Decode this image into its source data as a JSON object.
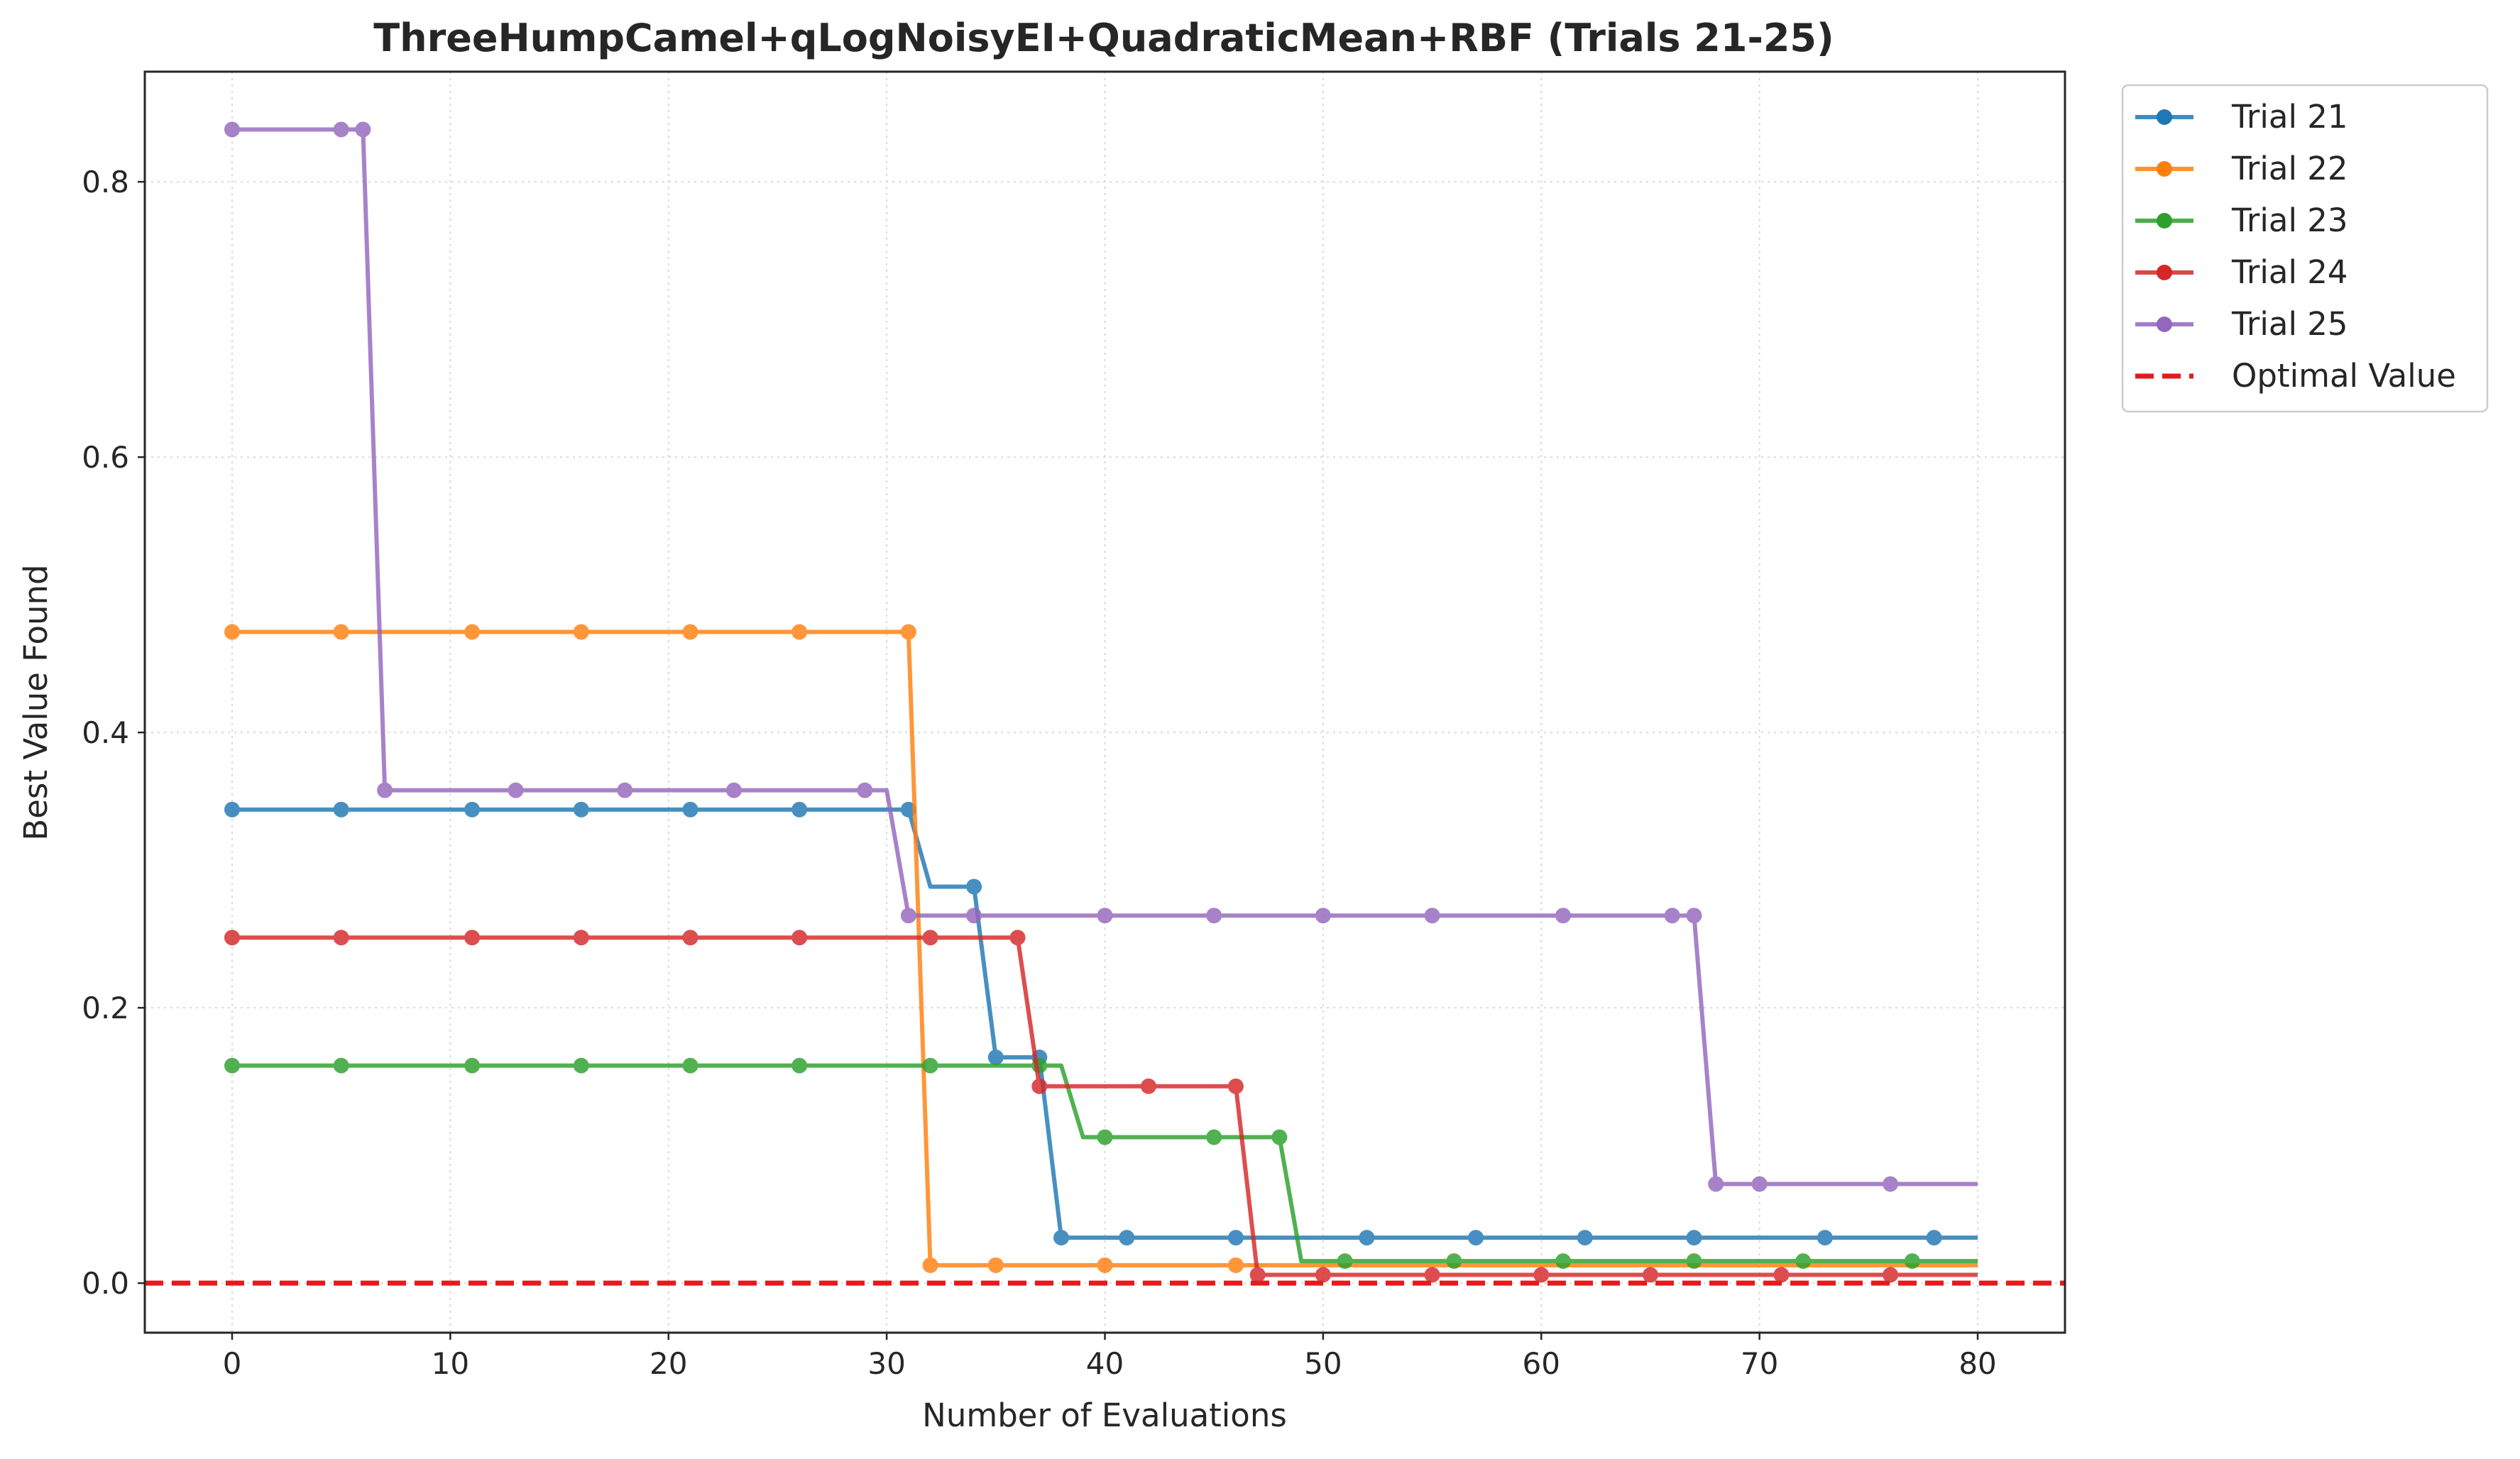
{
  "chart_data": {
    "type": "line",
    "title": "ThreeHumpCamel+qLogNoisyEI+QuadraticMean+RBF (Trials 21-25)",
    "xlabel": "Number of Evaluations",
    "ylabel": "Best Value Found",
    "xlim": [
      -4,
      84
    ],
    "ylim": [
      -0.036,
      0.88
    ],
    "xticks": [
      0,
      10,
      20,
      30,
      40,
      50,
      60,
      70,
      80
    ],
    "yticks": [
      0.0,
      0.2,
      0.4,
      0.6,
      0.8
    ],
    "xtick_labels": [
      "0",
      "10",
      "20",
      "30",
      "40",
      "50",
      "60",
      "70",
      "80"
    ],
    "ytick_labels": [
      "0.0",
      "0.2",
      "0.4",
      "0.6",
      "0.8"
    ],
    "grid": true,
    "legend_position": "outside top-right",
    "optimal_value": 0.0,
    "optimal_label": "Optimal Value",
    "optimal_color": "#e41a1c",
    "series": [
      {
        "name": "Trial 21",
        "color": "#1f77b4",
        "steps": [
          [
            0,
            0.344
          ],
          [
            32,
            0.288
          ],
          [
            35,
            0.164
          ],
          [
            38,
            0.033
          ],
          [
            80,
            0.033
          ]
        ],
        "markers": [
          [
            0,
            0.344
          ],
          [
            5,
            0.344
          ],
          [
            11,
            0.344
          ],
          [
            16,
            0.344
          ],
          [
            21,
            0.344
          ],
          [
            26,
            0.344
          ],
          [
            31,
            0.344
          ],
          [
            34,
            0.288
          ],
          [
            35,
            0.164
          ],
          [
            37,
            0.164
          ],
          [
            38,
            0.033
          ],
          [
            41,
            0.033
          ],
          [
            46,
            0.033
          ],
          [
            52,
            0.033
          ],
          [
            57,
            0.033
          ],
          [
            62,
            0.033
          ],
          [
            67,
            0.033
          ],
          [
            73,
            0.033
          ],
          [
            78,
            0.033
          ]
        ]
      },
      {
        "name": "Trial 22",
        "color": "#ff7f0e",
        "steps": [
          [
            0,
            0.473
          ],
          [
            32,
            0.013
          ],
          [
            80,
            0.013
          ]
        ],
        "markers": [
          [
            0,
            0.473
          ],
          [
            5,
            0.473
          ],
          [
            11,
            0.473
          ],
          [
            16,
            0.473
          ],
          [
            21,
            0.473
          ],
          [
            26,
            0.473
          ],
          [
            31,
            0.473
          ],
          [
            32,
            0.013
          ],
          [
            35,
            0.013
          ],
          [
            40,
            0.013
          ],
          [
            46,
            0.013
          ]
        ]
      },
      {
        "name": "Trial 23",
        "color": "#2ca02c",
        "steps": [
          [
            0,
            0.158
          ],
          [
            39,
            0.106
          ],
          [
            49,
            0.016
          ],
          [
            80,
            0.016
          ]
        ],
        "markers": [
          [
            0,
            0.158
          ],
          [
            5,
            0.158
          ],
          [
            11,
            0.158
          ],
          [
            16,
            0.158
          ],
          [
            21,
            0.158
          ],
          [
            26,
            0.158
          ],
          [
            32,
            0.158
          ],
          [
            37,
            0.158
          ],
          [
            40,
            0.106
          ],
          [
            45,
            0.106
          ],
          [
            48,
            0.106
          ],
          [
            51,
            0.016
          ],
          [
            56,
            0.016
          ],
          [
            61,
            0.016
          ],
          [
            67,
            0.016
          ],
          [
            72,
            0.016
          ],
          [
            77,
            0.016
          ]
        ]
      },
      {
        "name": "Trial 24",
        "color": "#d62728",
        "steps": [
          [
            0,
            0.251
          ],
          [
            37,
            0.143
          ],
          [
            47,
            0.006
          ],
          [
            80,
            0.006
          ]
        ],
        "markers": [
          [
            0,
            0.251
          ],
          [
            5,
            0.251
          ],
          [
            11,
            0.251
          ],
          [
            16,
            0.251
          ],
          [
            21,
            0.251
          ],
          [
            26,
            0.251
          ],
          [
            32,
            0.251
          ],
          [
            36,
            0.251
          ],
          [
            37,
            0.143
          ],
          [
            42,
            0.143
          ],
          [
            46,
            0.143
          ],
          [
            47,
            0.006
          ],
          [
            50,
            0.006
          ],
          [
            55,
            0.006
          ],
          [
            60,
            0.006
          ],
          [
            65,
            0.006
          ],
          [
            71,
            0.006
          ],
          [
            76,
            0.006
          ]
        ]
      },
      {
        "name": "Trial 25",
        "color": "#9467bd",
        "steps": [
          [
            0,
            0.838
          ],
          [
            7,
            0.358
          ],
          [
            31,
            0.267
          ],
          [
            68,
            0.072
          ],
          [
            80,
            0.072
          ]
        ],
        "markers": [
          [
            0,
            0.838
          ],
          [
            5,
            0.838
          ],
          [
            6,
            0.838
          ],
          [
            7,
            0.358
          ],
          [
            13,
            0.358
          ],
          [
            18,
            0.358
          ],
          [
            23,
            0.358
          ],
          [
            29,
            0.358
          ],
          [
            31,
            0.267
          ],
          [
            34,
            0.267
          ],
          [
            40,
            0.267
          ],
          [
            45,
            0.267
          ],
          [
            50,
            0.267
          ],
          [
            55,
            0.267
          ],
          [
            61,
            0.267
          ],
          [
            66,
            0.267
          ],
          [
            67,
            0.267
          ],
          [
            68,
            0.072
          ],
          [
            70,
            0.072
          ],
          [
            76,
            0.072
          ]
        ]
      }
    ]
  }
}
